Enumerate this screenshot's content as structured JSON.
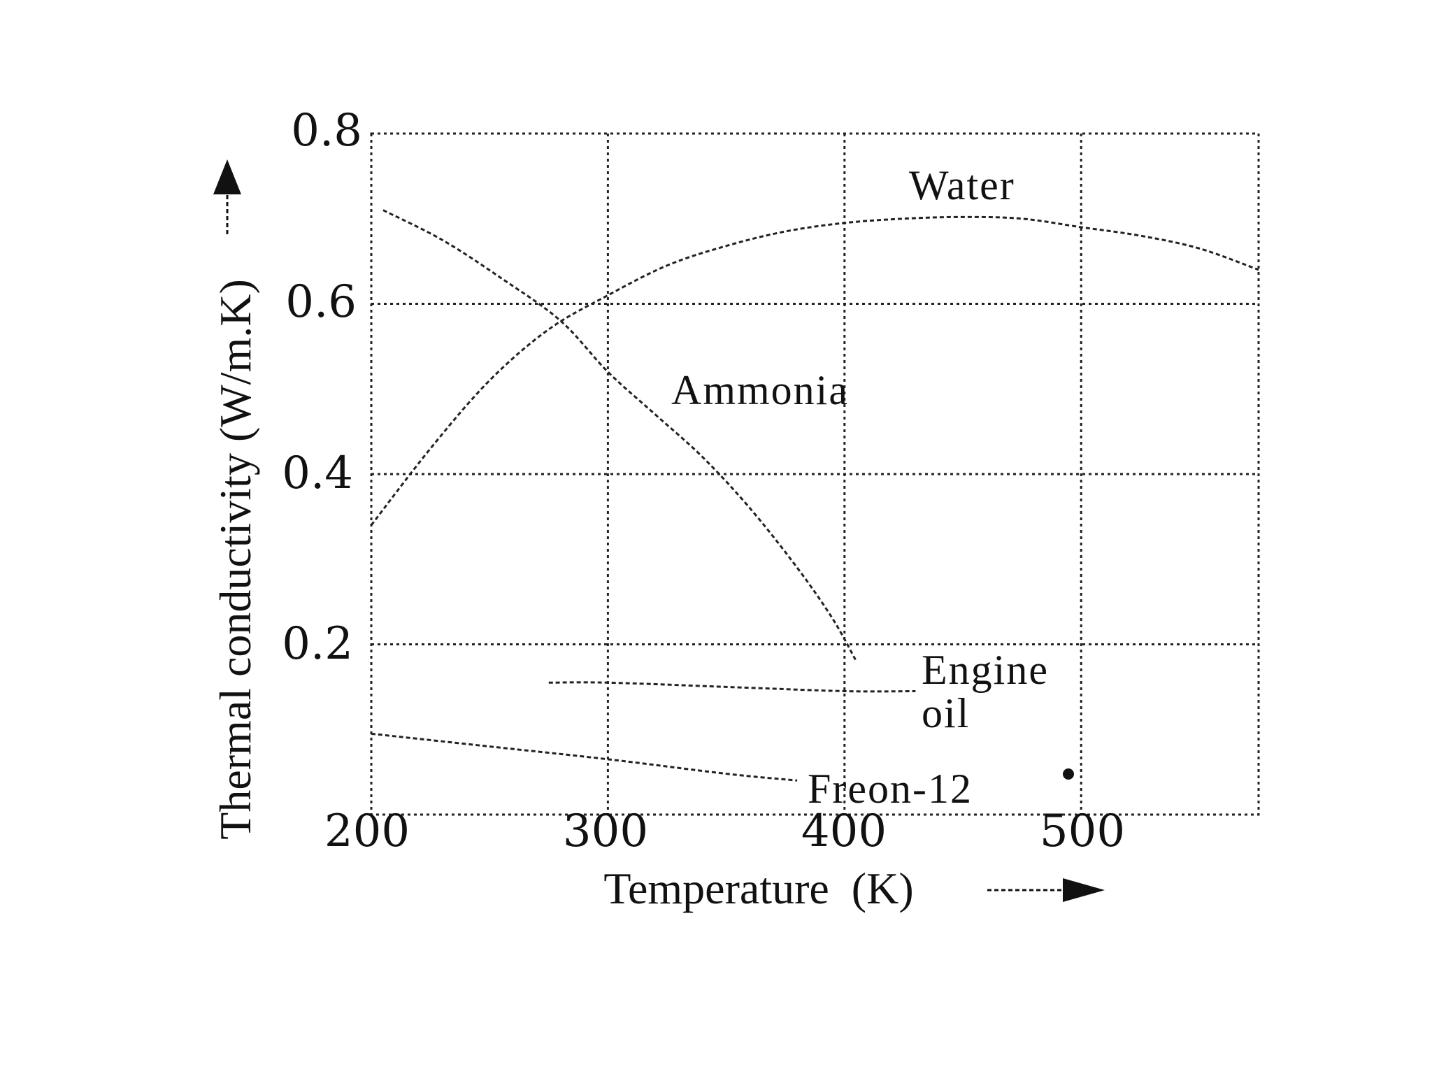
{
  "chart_data": {
    "type": "line",
    "title": "",
    "xlabel": "Temperature  (K)",
    "ylabel": "Thermal conductivity (W/m.K)",
    "xlim": [
      200,
      575
    ],
    "ylim": [
      0,
      0.8
    ],
    "grid": true,
    "x_ticks": [
      200,
      300,
      400,
      500
    ],
    "x_tick_labels": [
      "200",
      "300",
      "400",
      "500"
    ],
    "y_ticks": [
      0.2,
      0.4,
      0.6,
      0.8
    ],
    "y_tick_labels": [
      "0.2",
      "0.4",
      "0.6",
      "0.8"
    ],
    "series": [
      {
        "name": "Water",
        "label": "Water",
        "x": [
          200,
          225,
          250,
          275,
          300,
          325,
          350,
          375,
          400,
          425,
          450,
          475,
          500,
          525,
          550,
          575
        ],
        "y": [
          0.34,
          0.43,
          0.51,
          0.57,
          0.61,
          0.645,
          0.668,
          0.685,
          0.695,
          0.7,
          0.702,
          0.7,
          0.69,
          0.68,
          0.665,
          0.64
        ]
      },
      {
        "name": "Ammonia",
        "label": "Ammonia",
        "x": [
          205,
          230,
          255,
          280,
          300,
          320,
          340,
          360,
          380,
          395,
          405
        ],
        "y": [
          0.71,
          0.675,
          0.63,
          0.58,
          0.52,
          0.47,
          0.42,
          0.36,
          0.29,
          0.23,
          0.18
        ]
      },
      {
        "name": "Engine oil",
        "label_line1": "Engine",
        "label_line2": "oil",
        "x": [
          275,
          300,
          350,
          400,
          430
        ],
        "y": [
          0.155,
          0.155,
          0.15,
          0.145,
          0.145
        ]
      },
      {
        "name": "Freon-12",
        "label": "Freon-12",
        "x": [
          200,
          250,
          300,
          350,
          380
        ],
        "y": [
          0.095,
          0.08,
          0.065,
          0.048,
          0.04
        ]
      }
    ]
  }
}
